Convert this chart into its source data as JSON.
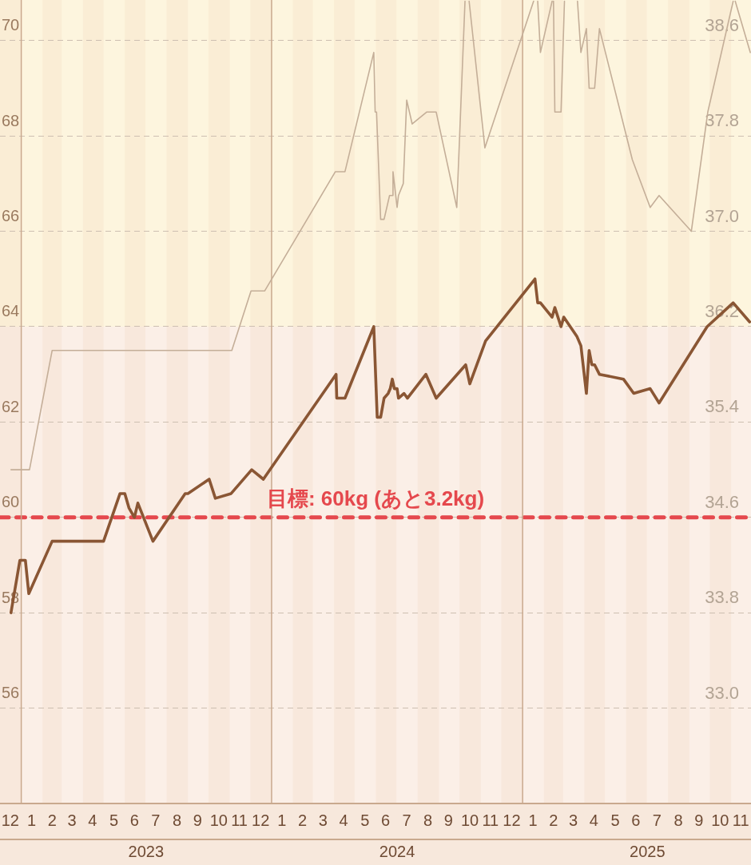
{
  "chart_data": {
    "type": "line",
    "xlim": [
      "2022-12-01",
      "2025-11-30"
    ],
    "xticks": [
      {
        "value": "2022-12-16",
        "label": "12"
      },
      {
        "value": "2023-01-16",
        "label": "1"
      },
      {
        "value": "2023-02-15",
        "label": "2"
      },
      {
        "value": "2023-03-16",
        "label": "3"
      },
      {
        "value": "2023-04-15",
        "label": "4"
      },
      {
        "value": "2023-05-16",
        "label": "5"
      },
      {
        "value": "2023-06-15",
        "label": "6"
      },
      {
        "value": "2023-07-16",
        "label": "7"
      },
      {
        "value": "2023-08-16",
        "label": "8"
      },
      {
        "value": "2023-09-15",
        "label": "9"
      },
      {
        "value": "2023-10-16",
        "label": "10"
      },
      {
        "value": "2023-11-15",
        "label": "11"
      },
      {
        "value": "2023-12-16",
        "label": "12"
      },
      {
        "value": "2024-01-16",
        "label": "1"
      },
      {
        "value": "2024-02-15",
        "label": "2"
      },
      {
        "value": "2024-03-16",
        "label": "3"
      },
      {
        "value": "2024-04-15",
        "label": "4"
      },
      {
        "value": "2024-05-16",
        "label": "5"
      },
      {
        "value": "2024-06-15",
        "label": "6"
      },
      {
        "value": "2024-07-16",
        "label": "7"
      },
      {
        "value": "2024-08-16",
        "label": "8"
      },
      {
        "value": "2024-09-15",
        "label": "9"
      },
      {
        "value": "2024-10-16",
        "label": "10"
      },
      {
        "value": "2024-11-15",
        "label": "11"
      },
      {
        "value": "2024-12-16",
        "label": "12"
      },
      {
        "value": "2025-01-16",
        "label": "1"
      },
      {
        "value": "2025-02-15",
        "label": "2"
      },
      {
        "value": "2025-03-16",
        "label": "3"
      },
      {
        "value": "2025-04-15",
        "label": "4"
      },
      {
        "value": "2025-05-16",
        "label": "5"
      },
      {
        "value": "2025-06-15",
        "label": "6"
      },
      {
        "value": "2025-07-16",
        "label": "7"
      },
      {
        "value": "2025-08-16",
        "label": "8"
      },
      {
        "value": "2025-09-15",
        "label": "9"
      },
      {
        "value": "2025-10-16",
        "label": "10"
      },
      {
        "value": "2025-11-15",
        "label": "11"
      }
    ],
    "x2lim": [
      "2022-12-01",
      "2025-11-30"
    ],
    "x2ticks": [
      {
        "value": "2023-07-02",
        "label": "2023"
      },
      {
        "value": "2024-07-02",
        "label": "2024"
      },
      {
        "value": "2025-07-02",
        "label": "2025"
      }
    ],
    "ylim": [
      54,
      70.85
    ],
    "yticks": [
      56,
      58,
      60,
      62,
      64,
      66,
      68,
      70
    ],
    "y2lim": [
      32.2,
      38.94
    ],
    "y2ticks": [
      {
        "value": 33,
        "label": "33.0"
      },
      33.8,
      34.6,
      35.4,
      36.2,
      {
        "value": 37,
        "label": "37.0"
      },
      37.8,
      38.6
    ],
    "series": [
      {
        "color": "#8a5634",
        "x": [
          "2022-12-17",
          "2022-12-30",
          "2023-01-07",
          "2023-01-12",
          "2023-02-15",
          "2023-05-01",
          "2023-05-25",
          "2023-06-01",
          "2023-06-07",
          "2023-06-15",
          "2023-06-20",
          "2023-07-12",
          "2023-08-28",
          "2023-09-01",
          "2023-10-02",
          "2023-10-11",
          "2023-11-03",
          "2023-12-03",
          "2023-12-20",
          "2024-04-04",
          "2024-04-05",
          "2024-04-17",
          "2024-05-29",
          "2024-06-03",
          "2024-06-08",
          "2024-06-13",
          "2024-06-19",
          "2024-06-22",
          "2024-06-25",
          "2024-06-28",
          "2024-07-02",
          "2024-07-04",
          "2024-07-12",
          "2024-07-17",
          "2024-08-13",
          "2024-08-28",
          "2024-10-10",
          "2024-10-16",
          "2024-11-08",
          "2025-01-19",
          "2025-01-23",
          "2025-01-27",
          "2025-02-13",
          "2025-02-17",
          "2025-02-26",
          "2025-03-02",
          "2025-03-21",
          "2025-03-27",
          "2025-04-04",
          "2025-04-08",
          "2025-04-12",
          "2025-04-16",
          "2025-04-23",
          "2025-05-28",
          "2025-06-12",
          "2025-07-06",
          "2025-07-19",
          "2025-09-27",
          "2025-11-04",
          "2025-11-28"
        ],
        "values": [
          58.0,
          59.1,
          59.1,
          58.4,
          59.5,
          59.5,
          60.5,
          60.5,
          60.2,
          60.0,
          60.3,
          59.5,
          60.5,
          60.5,
          60.8,
          60.4,
          60.5,
          61.0,
          60.8,
          63.0,
          62.5,
          62.5,
          64.0,
          62.1,
          62.1,
          62.5,
          62.6,
          62.7,
          62.9,
          62.7,
          62.7,
          62.5,
          62.6,
          62.5,
          63.0,
          62.5,
          63.2,
          62.8,
          63.7,
          65.0,
          64.5,
          64.5,
          64.2,
          64.4,
          64.0,
          64.2,
          63.8,
          63.6,
          62.6,
          63.5,
          63.2,
          63.2,
          63.0,
          62.9,
          62.6,
          62.7,
          62.4,
          64.0,
          64.5,
          64.1
        ]
      },
      {
        "color": "#c4ae98",
        "axis": "y2",
        "x": [
          "2022-12-17",
          "2023-01-13",
          "2023-02-15",
          "2023-11-04",
          "2023-12-02",
          "2023-12-22",
          "2024-04-03",
          "2024-04-17",
          "2024-05-29",
          "2024-05-31",
          "2024-06-02",
          "2024-06-08",
          "2024-06-13",
          "2024-06-21",
          "2024-06-25",
          "2024-06-26",
          "2024-07-02",
          "2024-07-04",
          "2024-07-11",
          "2024-07-16",
          "2024-07-24",
          "2024-08-14",
          "2024-08-28",
          "2024-09-27",
          "2024-10-09",
          "2024-10-12",
          "2024-10-15",
          "2024-11-07",
          "2025-01-17",
          "2025-01-20",
          "2025-01-23",
          "2025-01-27",
          "2025-02-13",
          "2025-02-14",
          "2025-02-15",
          "2025-02-17",
          "2025-02-26",
          "2025-03-03",
          "2025-03-12",
          "2025-03-22",
          "2025-03-27",
          "2025-04-04",
          "2025-04-08",
          "2025-04-16",
          "2025-04-23",
          "2025-06-10",
          "2025-07-06",
          "2025-07-19",
          "2025-09-04",
          "2025-09-28",
          "2025-11-04",
          "2025-11-05",
          "2025-11-07",
          "2025-11-29"
        ],
        "values": [
          35.0,
          35.0,
          36.0,
          36.0,
          36.5,
          36.5,
          37.5,
          37.5,
          38.5,
          38.0,
          38.0,
          37.1,
          37.1,
          37.3,
          37.3,
          37.5,
          37.2,
          37.3,
          37.4,
          38.1,
          37.9,
          38.0,
          38.0,
          37.2,
          38.93,
          null,
          38.93,
          37.7,
          38.93,
          null,
          38.93,
          38.5,
          38.93,
          null,
          38.93,
          38.0,
          38.0,
          38.93,
          null,
          38.93,
          38.5,
          38.7,
          38.2,
          38.2,
          38.7,
          37.6,
          37.2,
          37.3,
          37.0,
          38.0,
          38.93,
          null,
          38.93,
          38.5
        ]
      }
    ],
    "ref_lines": [
      {
        "axis": "y",
        "value": 60,
        "label": "目標: 60kg (あと3.2kg)",
        "color": "#e5484d",
        "line_style": "dashed"
      },
      {
        "axis": "x",
        "value": "2023-01-01",
        "color": "#c9a98e"
      },
      {
        "axis": "x",
        "value": "2024-01-01",
        "color": "#c9a98e"
      },
      {
        "axis": "x",
        "value": "2025-01-01",
        "color": "#c9a98e"
      }
    ],
    "bands": [
      {
        "axis": "y",
        "from": 64,
        "to": 70.85,
        "color": "#fdf5de"
      },
      {
        "axis": "y",
        "from": 54,
        "to": 64,
        "color": "#fbefe7"
      },
      {
        "axis": "x",
        "from": "2022-12-01",
        "to": "2023-01-01",
        "color": "#e9c4a0"
      },
      {
        "axis": "x",
        "from": "2023-02-01",
        "to": "2023-03-01",
        "color": "#e9c4a0"
      },
      {
        "axis": "x",
        "from": "2023-04-01",
        "to": "2023-05-01",
        "color": "#e9c4a0"
      },
      {
        "axis": "x",
        "from": "2023-06-01",
        "to": "2023-07-01",
        "color": "#e9c4a0"
      },
      {
        "axis": "x",
        "from": "2023-08-01",
        "to": "2023-09-01",
        "color": "#e9c4a0"
      },
      {
        "axis": "x",
        "from": "2023-10-01",
        "to": "2023-11-01",
        "color": "#e9c4a0"
      },
      {
        "axis": "x",
        "from": "2023-12-01",
        "to": "2024-01-01",
        "color": "#e9c4a0"
      },
      {
        "axis": "x",
        "from": "2024-02-01",
        "to": "2024-03-01",
        "color": "#e9c4a0"
      },
      {
        "axis": "x",
        "from": "2024-04-01",
        "to": "2024-05-01",
        "color": "#e9c4a0"
      },
      {
        "axis": "x",
        "from": "2024-06-01",
        "to": "2024-07-01",
        "color": "#e9c4a0"
      },
      {
        "axis": "x",
        "from": "2024-08-01",
        "to": "2024-09-01",
        "color": "#e9c4a0"
      },
      {
        "axis": "x",
        "from": "2024-10-01",
        "to": "2024-11-01",
        "color": "#e9c4a0"
      },
      {
        "axis": "x",
        "from": "2024-12-01",
        "to": "2025-01-01",
        "color": "#e9c4a0"
      },
      {
        "axis": "x",
        "from": "2025-02-01",
        "to": "2025-03-01",
        "color": "#e9c4a0"
      },
      {
        "axis": "x",
        "from": "2025-04-01",
        "to": "2025-05-01",
        "color": "#e9c4a0"
      },
      {
        "axis": "x",
        "from": "2025-06-01",
        "to": "2025-07-01",
        "color": "#e9c4a0"
      },
      {
        "axis": "x",
        "from": "2025-08-01",
        "to": "2025-09-01",
        "color": "#e9c4a0"
      },
      {
        "axis": "x",
        "from": "2025-10-01",
        "to": "2025-11-01",
        "color": "#e9c4a0"
      }
    ],
    "grid": "y",
    "marker": "none",
    "line_style": "solid"
  }
}
